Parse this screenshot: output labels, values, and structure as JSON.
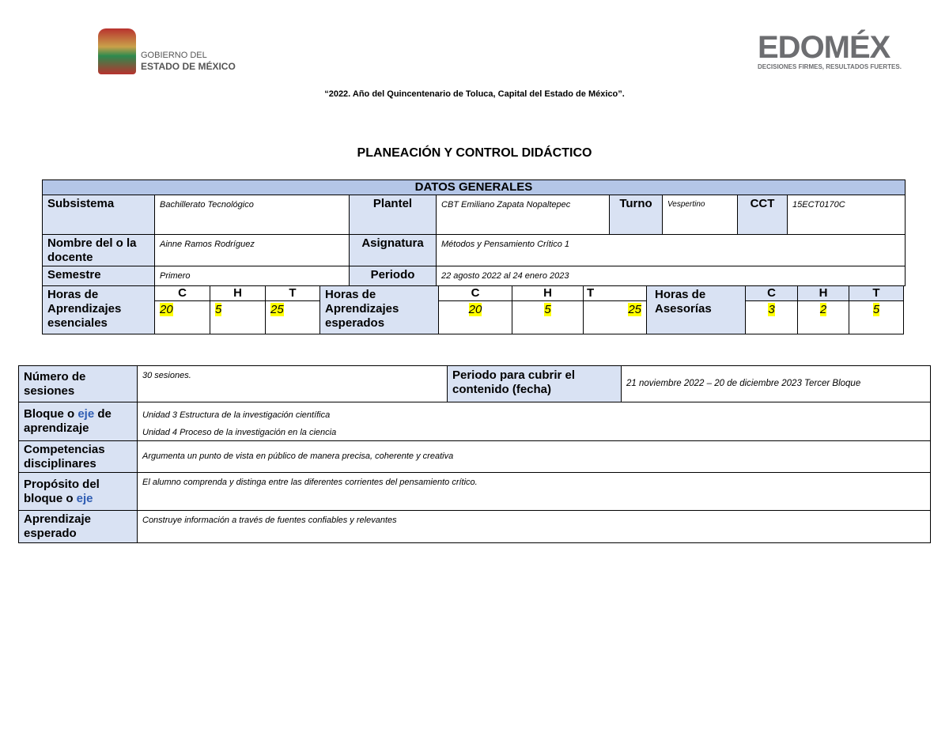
{
  "header": {
    "gov_logo_line1": "GOBIERNO DEL",
    "gov_logo_line2": "ESTADO DE MÉXICO",
    "edomex_logo": "EDOMÉX",
    "edomex_slogan": "DECISIONES FIRMES, RESULTADOS FUERTES.",
    "motto": "“2022. Año del Quincentenario de Toluca, Capital del Estado de México”.",
    "title": "PLANEACIÓN Y CONTROL DIDÁCTICO"
  },
  "datos": {
    "heading": "DATOS GENERALES",
    "subsistema_label": "Subsistema",
    "subsistema": "Bachillerato Tecnológico",
    "plantel_label": "Plantel",
    "plantel": "CBT Emiliano Zapata Nopaltepec",
    "turno_label": "Turno",
    "turno": "Vespertino",
    "cct_label": "CCT",
    "cct": "15ECT0170C",
    "docente_label": "Nombre del o la docente",
    "docente": "Ainne Ramos Rodríguez",
    "asignatura_label": "Asignatura",
    "asignatura": "Métodos y Pensamiento Crítico 1",
    "semestre_label": "Semestre",
    "semestre": "Primero",
    "periodo_label": "Periodo",
    "periodo": "22 agosto 2022 al 24 enero 2023",
    "col_c": "C",
    "col_h": "H",
    "col_t": "T",
    "esenciales_label": "Horas de Aprendizajes esenciales",
    "esenciales": {
      "c": "20",
      "h": "5",
      "t": "25"
    },
    "esperados_label": "Horas de Aprendizajes esperados",
    "esperados": {
      "c": "20",
      "h": "5",
      "t": "25"
    },
    "asesorias_label": "Horas de Asesorías",
    "asesorias": {
      "c": "3",
      "h": "2",
      "t": "5"
    }
  },
  "detalle": {
    "sesiones_label": "Número de sesiones",
    "sesiones": "30 sesiones.",
    "periodo_label": "Periodo para cubrir el contenido (fecha)",
    "periodo": "21 noviembre 2022 – 20 de diciembre 2023 Tercer Bloque",
    "bloque_label_a": "Bloque o ",
    "bloque_label_eje": "eje",
    "bloque_label_b": " de aprendizaje",
    "bloque_1": "Unidad 3 Estructura de la investigación científica",
    "bloque_2": "Unidad 4 Proceso de la investigación en la ciencia",
    "competencias_label": "Competencias disciplinares",
    "competencias": "Argumenta un punto de vista en público de manera precisa, coherente y creativa",
    "proposito_label_a": "Propósito del bloque o ",
    "proposito_label_eje": "eje",
    "proposito": "El alumno comprenda y distinga entre las diferentes corrientes del pensamiento crítico.",
    "aprendizaje_label": "Aprendizaje esperado",
    "aprendizaje": "Construye información a través de fuentes confiables y relevantes"
  },
  "colors": {
    "header_blue": "#b4c6e7",
    "label_blue": "#d9e2f3",
    "highlight": "#ffff00",
    "eje_blue": "#2f5db3"
  }
}
